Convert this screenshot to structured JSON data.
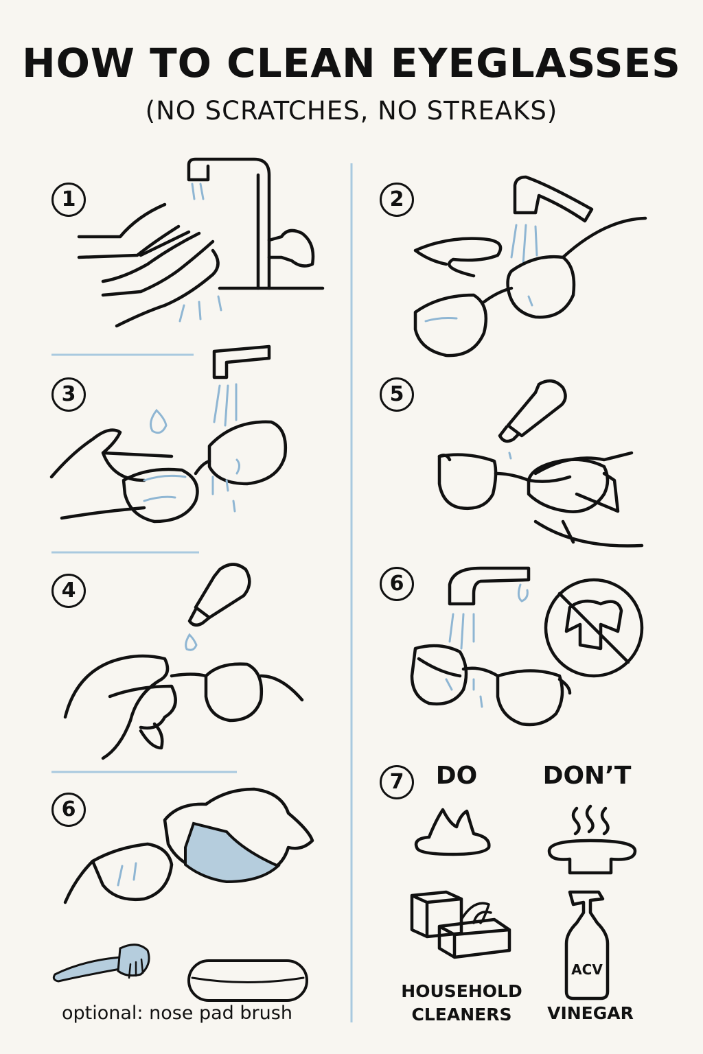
{
  "header": {
    "title": "HOW TO CLEAN EYEGLASSES",
    "subtitle": "(NO SCRATCHES, NO STREAKS)"
  },
  "steps": [
    {
      "number": "1",
      "icon": "hands-under-faucet-icon"
    },
    {
      "number": "2",
      "icon": "glasses-under-faucet-icon"
    },
    {
      "number": "3",
      "icon": "rinse-glasses-icon"
    },
    {
      "number": "5",
      "icon": "cleaner-drop-glasses-icon"
    },
    {
      "number": "4",
      "icon": "dropper-glasses-icon"
    },
    {
      "number": "6",
      "icon": "no-towel-icon"
    },
    {
      "number": "6",
      "icon": "microfiber-cloth-icon"
    },
    {
      "number": "7",
      "icon": "do-dont-icon"
    }
  ],
  "do_dont": {
    "do_label": "DO",
    "dont_label": "DON’T",
    "do_item": "HOUSEHOLD\nCLEANERS",
    "dont_item": "VINEGAR",
    "bottle_text": "ACV"
  },
  "footer": {
    "optional_note": "optional: nose pad brush"
  },
  "colors": {
    "background": "#f8f6f1",
    "ink": "#111111",
    "accent_blue": "#8fb6d3"
  }
}
